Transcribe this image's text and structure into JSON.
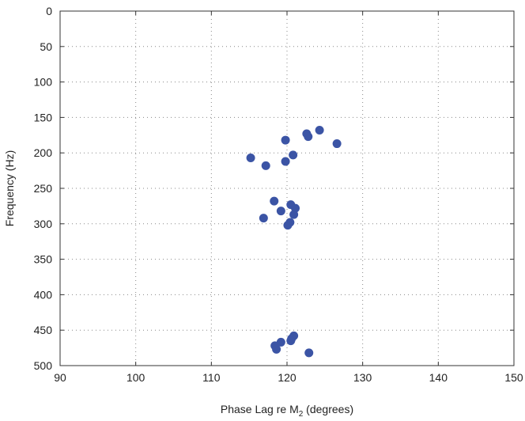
{
  "chart_data": {
    "type": "scatter",
    "title": "",
    "xlabel": {
      "main": "Phase Lag re M",
      "sub": "2",
      "suffix": " (degrees)"
    },
    "ylabel": "Frequency (Hz)",
    "xlim": [
      90,
      150
    ],
    "ylim": [
      0,
      500
    ],
    "y_inverted": true,
    "x_ticks": [
      90,
      100,
      110,
      120,
      130,
      140,
      150
    ],
    "y_ticks": [
      0,
      50,
      100,
      150,
      200,
      250,
      300,
      350,
      400,
      450,
      500
    ],
    "grid": true,
    "legend": "none",
    "marker_color": "#3B54A5",
    "points": [
      {
        "x": 124.3,
        "y": 168
      },
      {
        "x": 122.6,
        "y": 173
      },
      {
        "x": 122.8,
        "y": 177
      },
      {
        "x": 126.6,
        "y": 187
      },
      {
        "x": 119.8,
        "y": 182
      },
      {
        "x": 120.8,
        "y": 203
      },
      {
        "x": 119.8,
        "y": 212
      },
      {
        "x": 115.2,
        "y": 207
      },
      {
        "x": 117.2,
        "y": 218
      },
      {
        "x": 118.3,
        "y": 268
      },
      {
        "x": 120.5,
        "y": 273
      },
      {
        "x": 121.1,
        "y": 278
      },
      {
        "x": 119.2,
        "y": 282
      },
      {
        "x": 120.9,
        "y": 287
      },
      {
        "x": 116.9,
        "y": 292
      },
      {
        "x": 120.4,
        "y": 298
      },
      {
        "x": 120.1,
        "y": 302
      },
      {
        "x": 120.9,
        "y": 458
      },
      {
        "x": 120.6,
        "y": 462
      },
      {
        "x": 120.5,
        "y": 465
      },
      {
        "x": 119.2,
        "y": 467
      },
      {
        "x": 118.4,
        "y": 472
      },
      {
        "x": 118.6,
        "y": 477
      },
      {
        "x": 122.9,
        "y": 482
      }
    ]
  }
}
